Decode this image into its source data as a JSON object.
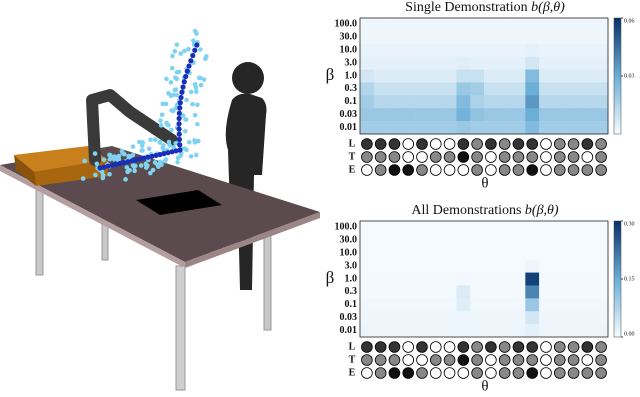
{
  "chart_data": [
    {
      "type": "heatmap",
      "title": "Single Demonstration",
      "title_formula": "b(β,θ)",
      "y_label": "β",
      "x_label": "θ",
      "rows": [
        "100.0",
        "30.0",
        "10.0",
        "3.0",
        "1.0",
        "0.3",
        "0.1",
        "0.03",
        "0.01"
      ],
      "colormap": [
        "#f7fbff",
        "#6baed6",
        "#08306b"
      ],
      "clim": [
        0,
        0.06
      ],
      "cticks": [
        0.03,
        0.06
      ],
      "values": [
        [
          0.002,
          0.002,
          0.002,
          0.002,
          0.002,
          0.002,
          0.002,
          0.002,
          0.002,
          0.002,
          0.002,
          0.002,
          0.002,
          0.002,
          0.002,
          0.002,
          0.002,
          0.002
        ],
        [
          0.002,
          0.002,
          0.002,
          0.002,
          0.002,
          0.002,
          0.002,
          0.002,
          0.002,
          0.002,
          0.002,
          0.002,
          0.002,
          0.002,
          0.002,
          0.002,
          0.002,
          0.002
        ],
        [
          0.003,
          0.003,
          0.003,
          0.003,
          0.003,
          0.003,
          0.003,
          0.003,
          0.003,
          0.003,
          0.003,
          0.003,
          0.004,
          0.003,
          0.003,
          0.003,
          0.003,
          0.003
        ],
        [
          0.004,
          0.004,
          0.004,
          0.004,
          0.004,
          0.004,
          0.004,
          0.005,
          0.004,
          0.004,
          0.004,
          0.004,
          0.008,
          0.004,
          0.004,
          0.004,
          0.004,
          0.004
        ],
        [
          0.008,
          0.006,
          0.006,
          0.006,
          0.006,
          0.006,
          0.006,
          0.01,
          0.01,
          0.006,
          0.006,
          0.006,
          0.025,
          0.006,
          0.006,
          0.006,
          0.006,
          0.006
        ],
        [
          0.015,
          0.01,
          0.01,
          0.01,
          0.01,
          0.01,
          0.01,
          0.02,
          0.018,
          0.01,
          0.01,
          0.01,
          0.03,
          0.01,
          0.01,
          0.01,
          0.01,
          0.01
        ],
        [
          0.018,
          0.014,
          0.014,
          0.014,
          0.014,
          0.014,
          0.014,
          0.025,
          0.016,
          0.014,
          0.014,
          0.014,
          0.035,
          0.014,
          0.014,
          0.014,
          0.014,
          0.014
        ],
        [
          0.02,
          0.02,
          0.02,
          0.02,
          0.02,
          0.02,
          0.02,
          0.028,
          0.022,
          0.02,
          0.02,
          0.02,
          0.03,
          0.02,
          0.02,
          0.02,
          0.02,
          0.02
        ],
        [
          0.018,
          0.018,
          0.018,
          0.018,
          0.018,
          0.018,
          0.018,
          0.02,
          0.018,
          0.018,
          0.018,
          0.018,
          0.025,
          0.018,
          0.018,
          0.018,
          0.018,
          0.018
        ]
      ],
      "feature_labels": [
        "L",
        "T",
        "E"
      ],
      "features": [
        [
          "#333",
          "#333",
          "#333",
          "#fff",
          "#333",
          "#fff",
          "#fff",
          "#333",
          "#888",
          "#333",
          "#888",
          "#333",
          "#333",
          "#fff",
          "#888",
          "#888",
          "#333",
          "#888"
        ],
        [
          "#888",
          "#888",
          "#888",
          "#fff",
          "#fff",
          "#888",
          "#888",
          "#111",
          "#888",
          "#fff",
          "#888",
          "#888",
          "#888",
          "#fff",
          "#888",
          "#888",
          "#fff",
          "#888"
        ],
        [
          "#fff",
          "#888",
          "#111",
          "#111",
          "#888",
          "#fff",
          "#fff",
          "#fff",
          "#888",
          "#fff",
          "#888",
          "#888",
          "#111",
          "#fff",
          "#888",
          "#888",
          "#888",
          "#888"
        ]
      ]
    },
    {
      "type": "heatmap",
      "title": "All Demonstrations",
      "title_formula": "b(β,θ)",
      "y_label": "β",
      "x_label": "θ",
      "rows": [
        "100.0",
        "30.0",
        "10.0",
        "3.0",
        "1.0",
        "0.3",
        "0.1",
        "0.03",
        "0.01"
      ],
      "colormap": [
        "#f7fbff",
        "#6baed6",
        "#08306b"
      ],
      "clim": [
        0,
        0.3
      ],
      "cticks": [
        {
          "value": 0,
          "label": "0.00"
        },
        0.15,
        {
          "value": 0.3,
          "label": "0.30"
        }
      ],
      "values": [
        [
          0.002,
          0.002,
          0.002,
          0.002,
          0.002,
          0.002,
          0.002,
          0.002,
          0.002,
          0.002,
          0.002,
          0.002,
          0.002,
          0.002,
          0.002,
          0.002,
          0.002,
          0.002
        ],
        [
          0.002,
          0.002,
          0.002,
          0.002,
          0.002,
          0.002,
          0.002,
          0.002,
          0.002,
          0.002,
          0.002,
          0.002,
          0.002,
          0.002,
          0.002,
          0.002,
          0.002,
          0.002
        ],
        [
          0.002,
          0.002,
          0.002,
          0.002,
          0.002,
          0.002,
          0.002,
          0.002,
          0.002,
          0.002,
          0.002,
          0.002,
          0.002,
          0.002,
          0.002,
          0.002,
          0.002,
          0.002
        ],
        [
          0.002,
          0.002,
          0.002,
          0.002,
          0.002,
          0.002,
          0.002,
          0.002,
          0.002,
          0.002,
          0.002,
          0.002,
          0.01,
          0.002,
          0.002,
          0.002,
          0.002,
          0.002
        ],
        [
          0.003,
          0.003,
          0.003,
          0.003,
          0.003,
          0.003,
          0.003,
          0.005,
          0.003,
          0.003,
          0.003,
          0.003,
          0.28,
          0.003,
          0.003,
          0.003,
          0.003,
          0.003
        ],
        [
          0.004,
          0.004,
          0.004,
          0.004,
          0.004,
          0.004,
          0.004,
          0.03,
          0.004,
          0.004,
          0.004,
          0.004,
          0.2,
          0.004,
          0.004,
          0.004,
          0.004,
          0.004
        ],
        [
          0.006,
          0.006,
          0.006,
          0.006,
          0.006,
          0.006,
          0.006,
          0.025,
          0.006,
          0.006,
          0.006,
          0.006,
          0.1,
          0.006,
          0.006,
          0.006,
          0.006,
          0.006
        ],
        [
          0.01,
          0.01,
          0.01,
          0.01,
          0.01,
          0.01,
          0.01,
          0.012,
          0.01,
          0.01,
          0.01,
          0.01,
          0.04,
          0.01,
          0.01,
          0.01,
          0.01,
          0.01
        ],
        [
          0.012,
          0.012,
          0.012,
          0.012,
          0.012,
          0.012,
          0.012,
          0.012,
          0.012,
          0.012,
          0.012,
          0.012,
          0.02,
          0.012,
          0.012,
          0.012,
          0.012,
          0.012
        ]
      ],
      "feature_labels": [
        "L",
        "T",
        "E"
      ],
      "features": [
        [
          "#333",
          "#333",
          "#333",
          "#fff",
          "#333",
          "#fff",
          "#fff",
          "#333",
          "#888",
          "#333",
          "#888",
          "#333",
          "#333",
          "#fff",
          "#888",
          "#888",
          "#333",
          "#888"
        ],
        [
          "#888",
          "#888",
          "#888",
          "#fff",
          "#fff",
          "#888",
          "#888",
          "#111",
          "#888",
          "#fff",
          "#888",
          "#888",
          "#888",
          "#fff",
          "#888",
          "#888",
          "#fff",
          "#888"
        ],
        [
          "#fff",
          "#888",
          "#111",
          "#111",
          "#888",
          "#fff",
          "#fff",
          "#fff",
          "#888",
          "#fff",
          "#888",
          "#888",
          "#111",
          "#fff",
          "#888",
          "#888",
          "#888",
          "#888"
        ]
      ]
    }
  ]
}
